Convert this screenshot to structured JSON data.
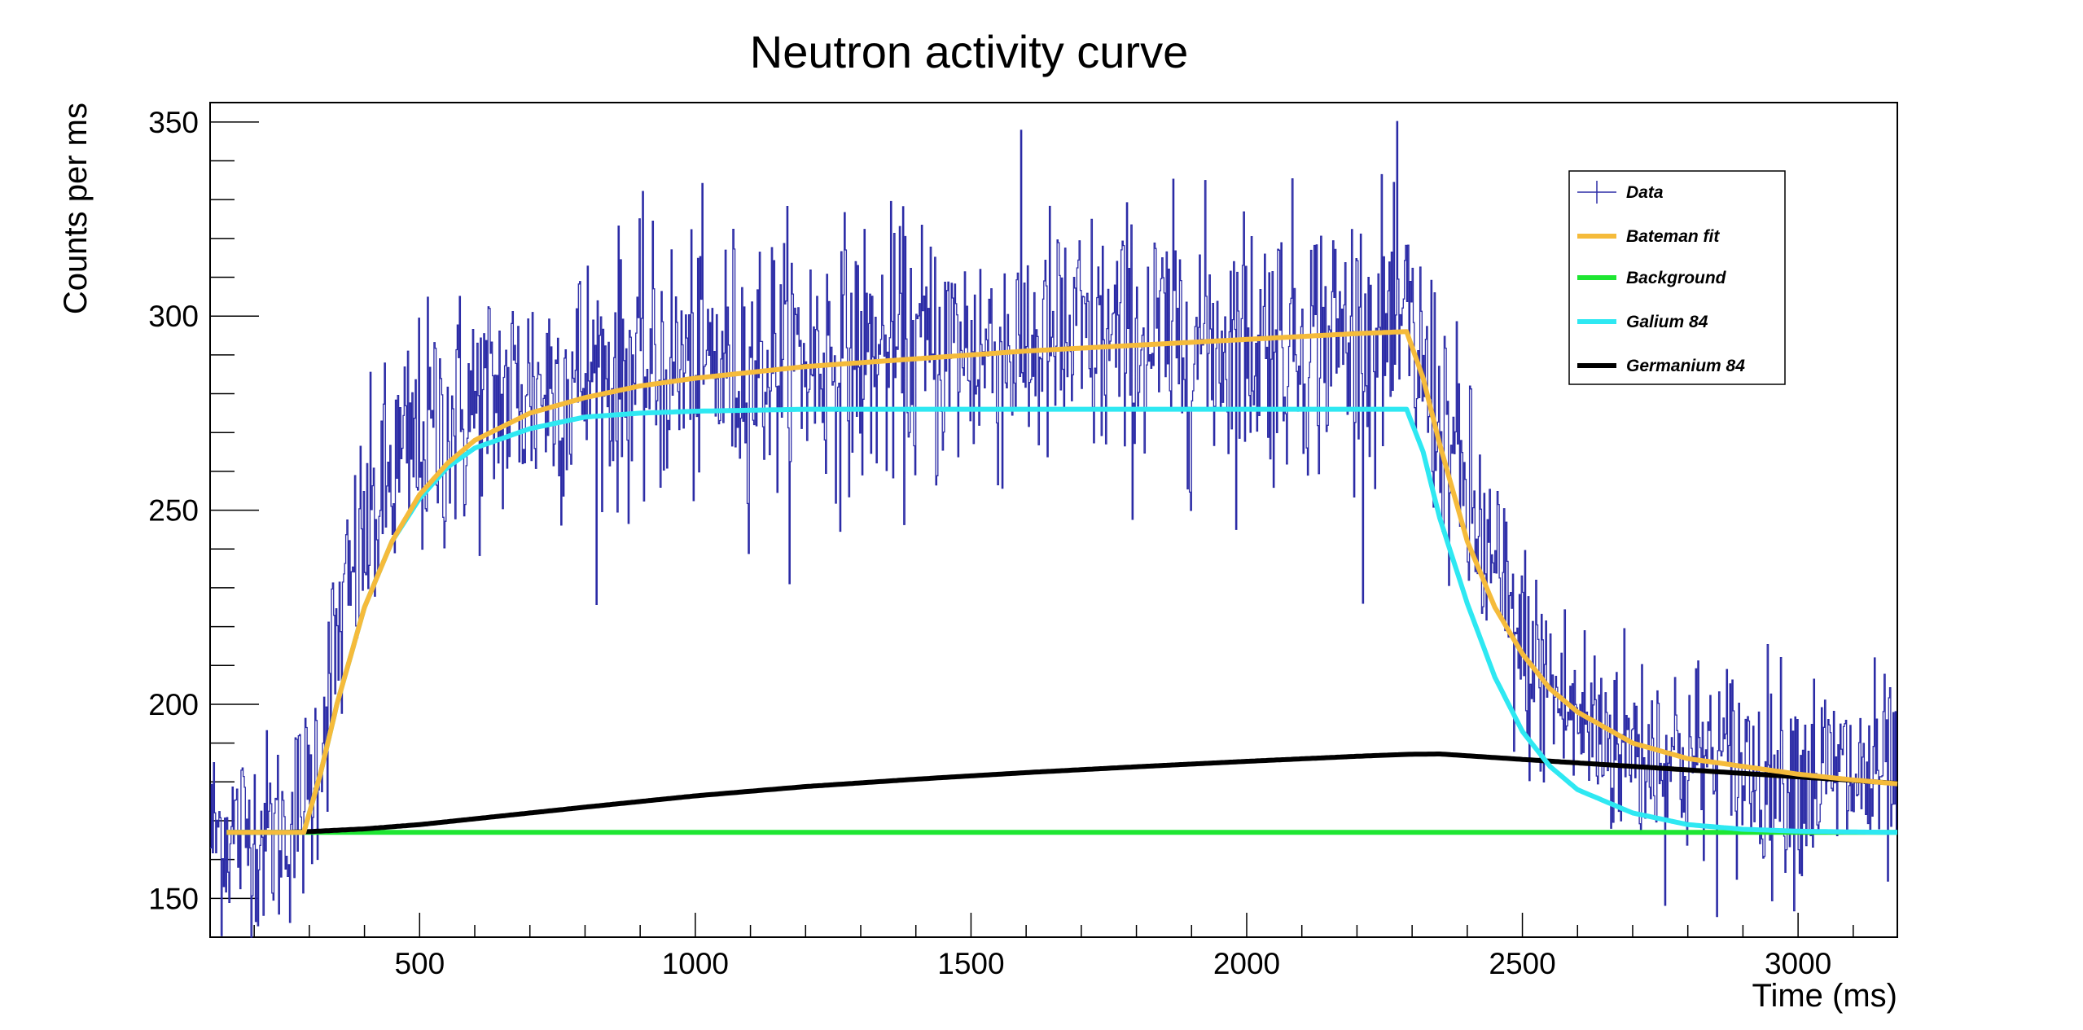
{
  "chart_data": {
    "type": "line",
    "title": "Neutron activity curve",
    "xlabel": "Time (ms)",
    "ylabel": "Counts per ms",
    "xlim": [
      120,
      3180
    ],
    "ylim": [
      140,
      355
    ],
    "xticks": [
      500,
      1000,
      1500,
      2000,
      2500,
      3000
    ],
    "yticks": [
      150,
      200,
      250,
      300,
      350
    ],
    "legend_position": "top-right",
    "grid": false,
    "series": [
      {
        "name": "Data",
        "kind": "histogram-with-errors",
        "color": "#2b2ba6",
        "x": [
          150,
          200,
          250,
          300,
          350,
          400,
          450,
          500,
          600,
          700,
          800,
          900,
          1000,
          1200,
          1400,
          1600,
          1800,
          2000,
          2200,
          2290,
          2350,
          2400,
          2450,
          2500,
          2550,
          2600,
          2700,
          2800,
          2900,
          3000,
          3100,
          3180
        ],
        "y": [
          167,
          167,
          167,
          176,
          215,
          243,
          258,
          268,
          276,
          281,
          284,
          286,
          287,
          289,
          290,
          292,
          293,
          294,
          295,
          296,
          275,
          252,
          232,
          213,
          204,
          196,
          189,
          186,
          184,
          182,
          181,
          180
        ]
      },
      {
        "name": "Bateman fit",
        "color": "#f5bb3b",
        "x": [
          150,
          250,
          290,
          320,
          350,
          400,
          450,
          500,
          550,
          600,
          700,
          800,
          900,
          1000,
          1200,
          1400,
          1600,
          1800,
          2000,
          2200,
          2290,
          2320,
          2350,
          2400,
          2450,
          2500,
          2550,
          2600,
          2700,
          2800,
          2900,
          3000,
          3100,
          3180
        ],
        "y": [
          167,
          167,
          167,
          182,
          200,
          225,
          242,
          254,
          262,
          268,
          275,
          279,
          282,
          284,
          287,
          289,
          291,
          292.5,
          294,
          295.5,
          296,
          284,
          267,
          242,
          225,
          213,
          204,
          198,
          190,
          186,
          184,
          182,
          180.5,
          179.5
        ]
      },
      {
        "name": "Background",
        "color": "#1ee632",
        "x": [
          150,
          3180
        ],
        "y": [
          167,
          167
        ]
      },
      {
        "name": "Galium 84",
        "color": "#2ee8f2",
        "x": [
          150,
          250,
          290,
          320,
          350,
          400,
          450,
          500,
          550,
          600,
          700,
          800,
          900,
          1000,
          1200,
          1500,
          2000,
          2290,
          2320,
          2350,
          2400,
          2450,
          2500,
          2550,
          2600,
          2700,
          2800,
          2900,
          3000,
          3100,
          3180
        ],
        "y": [
          167,
          167,
          167,
          182,
          200,
          225,
          242,
          253,
          261,
          266,
          271,
          274,
          275,
          275.5,
          276,
          276,
          276,
          276,
          265,
          248,
          226,
          207,
          193,
          184,
          178,
          172,
          169,
          167.8,
          167.3,
          167.1,
          167
        ]
      },
      {
        "name": "Germanium 84",
        "color": "#000000",
        "x": [
          150,
          250,
          300,
          400,
          500,
          600,
          700,
          800,
          1000,
          1200,
          1400,
          1600,
          1800,
          2000,
          2200,
          2290,
          2350,
          2500,
          2700,
          2900,
          3100,
          3180
        ],
        "y": [
          167,
          167,
          167.2,
          167.9,
          169,
          170.5,
          172,
          173.5,
          176.4,
          178.8,
          180.7,
          182.4,
          183.9,
          185.3,
          186.6,
          187.1,
          187.2,
          185.8,
          184,
          182.2,
          180.4,
          179.6
        ]
      }
    ]
  }
}
